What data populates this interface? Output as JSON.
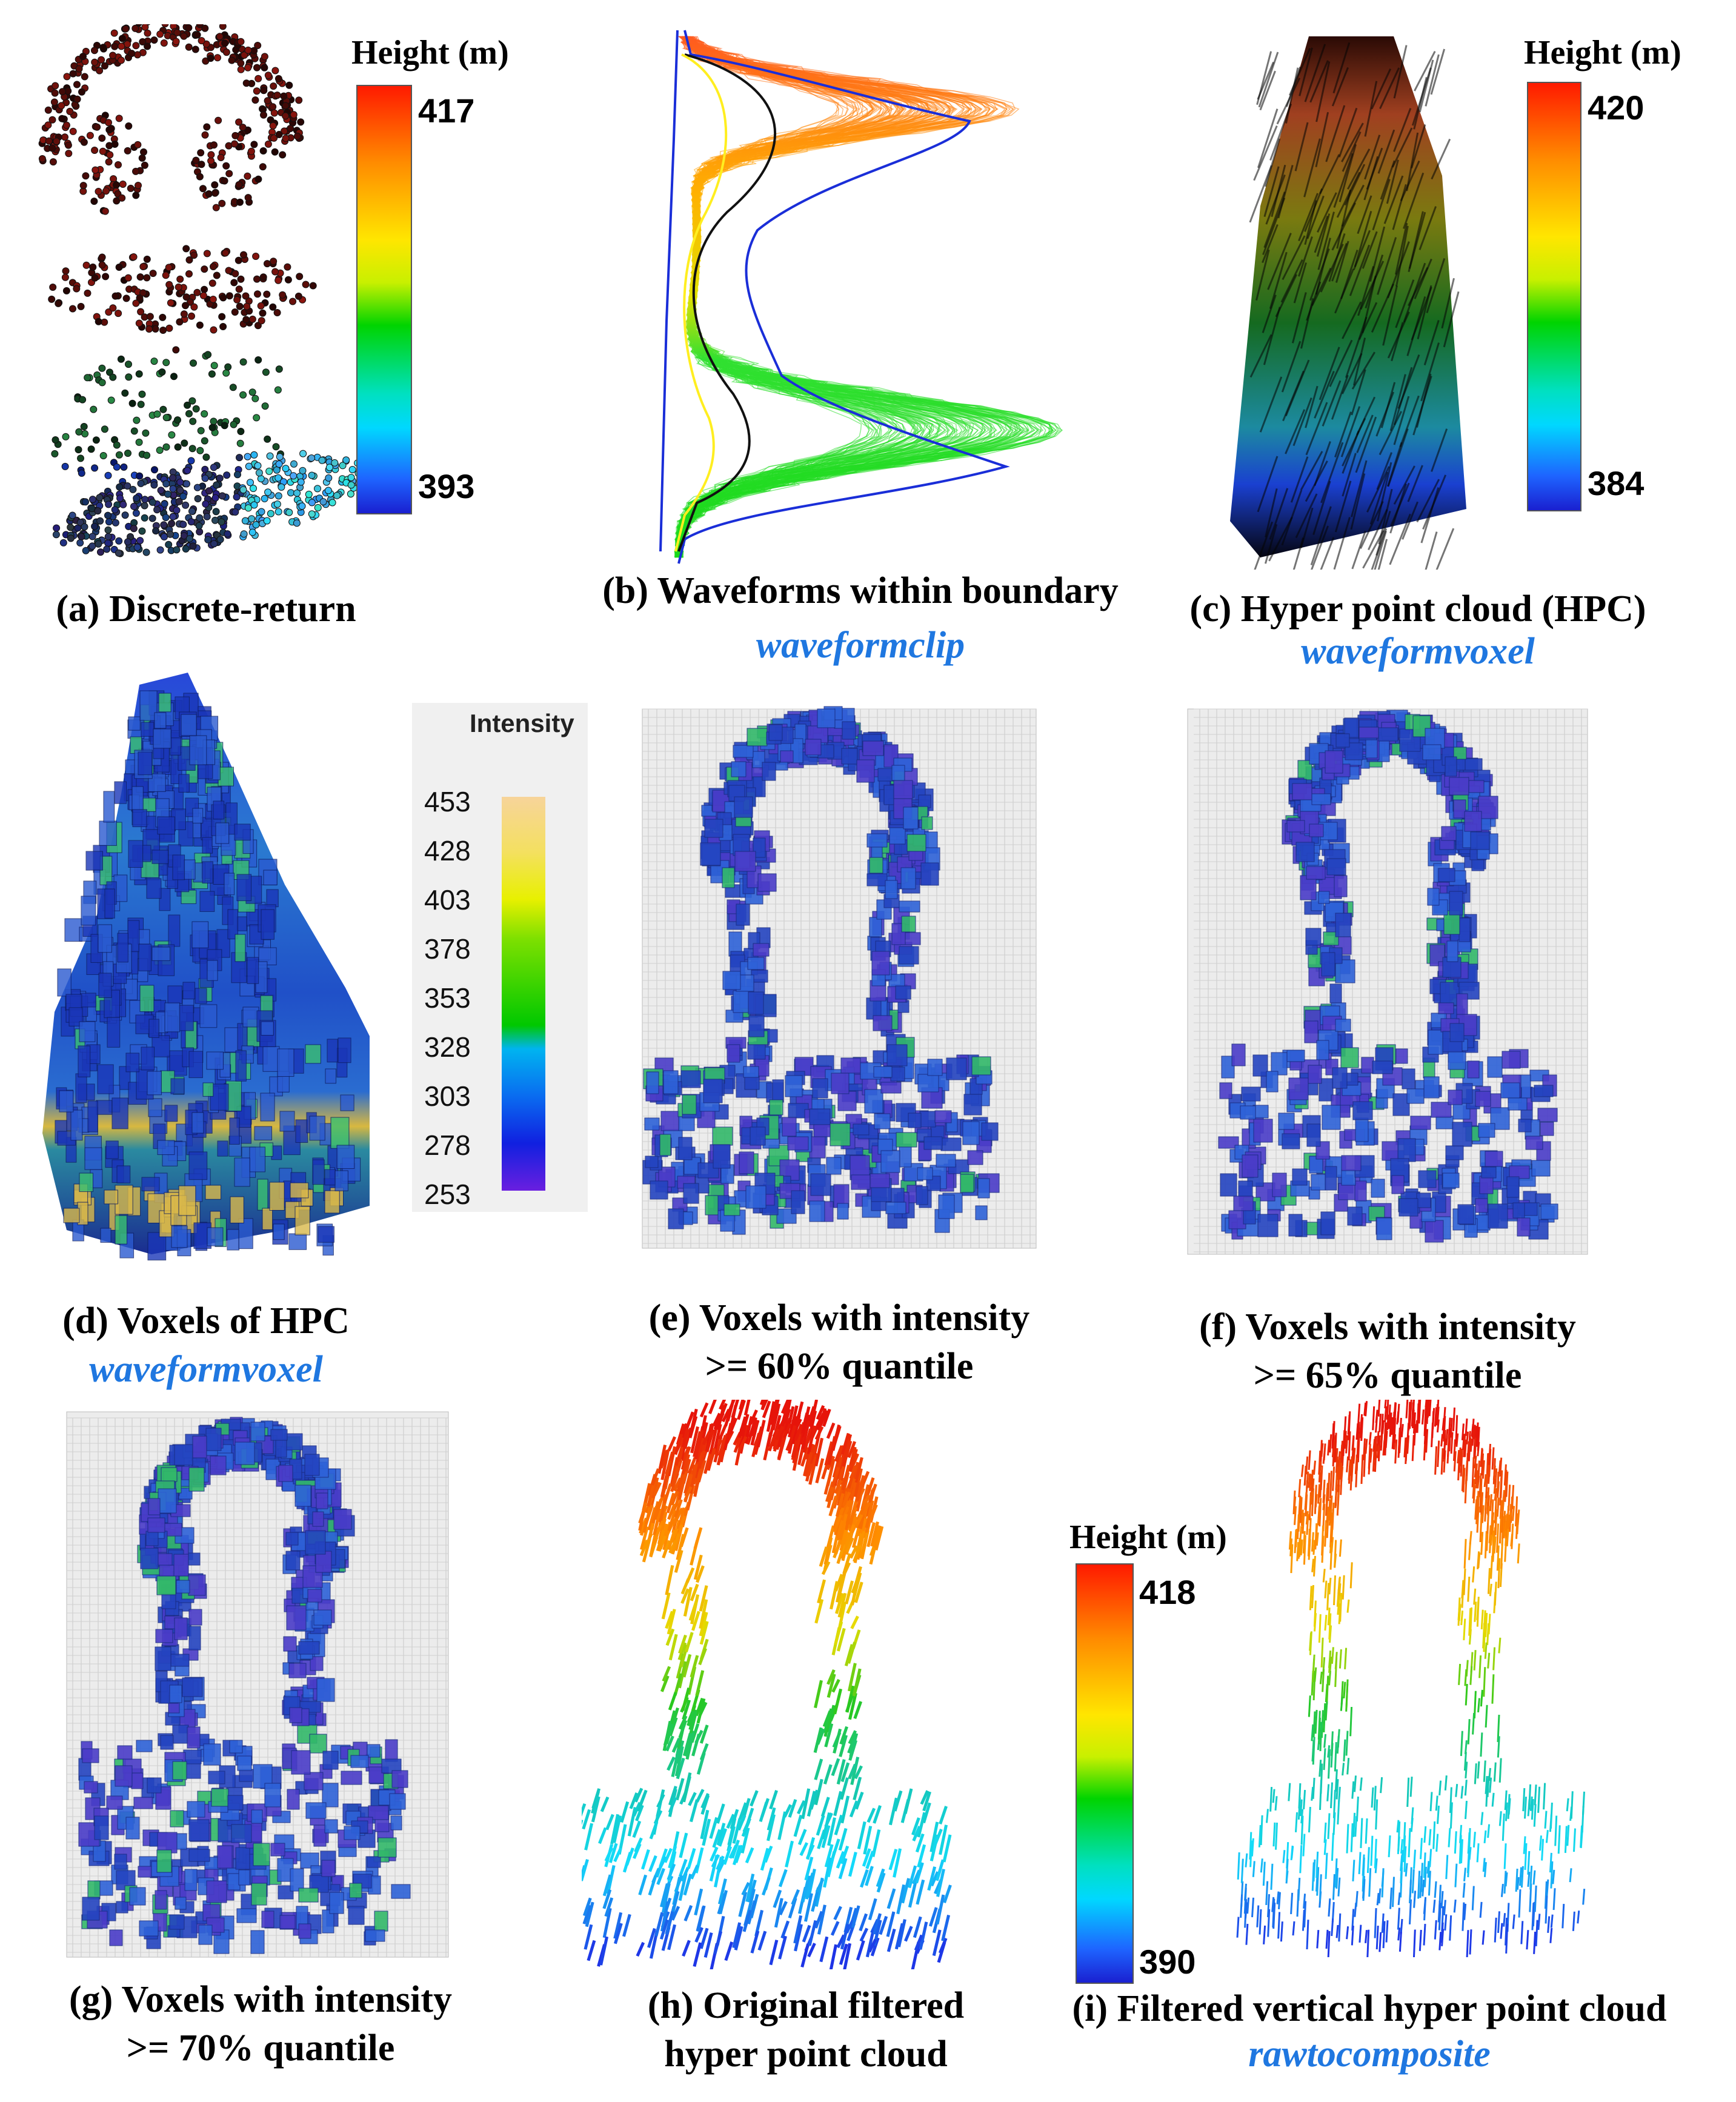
{
  "panels": {
    "a": {
      "caption": "(a) Discrete-return",
      "function": "",
      "icon": "point-cloud-icon"
    },
    "b": {
      "caption": "(b) Waveforms within boundary",
      "function": "waveformclip",
      "icon": "waveform-lines-icon"
    },
    "c": {
      "caption": "(c) Hyper point cloud (HPC)",
      "function": "waveformvoxel",
      "icon": "hyper-point-cloud-icon"
    },
    "d": {
      "caption": "(d) Voxels of HPC",
      "function": "waveformvoxel",
      "icon": "voxel-icon"
    },
    "e": {
      "caption_line1": "(e) Voxels with intensity",
      "caption_line2": ">= 60% quantile",
      "icon": "voxel-icon"
    },
    "f": {
      "caption_line1": "(f) Voxels with intensity",
      "caption_line2": ">= 65% quantile",
      "icon": "voxel-icon"
    },
    "g": {
      "caption_line1": "(g) Voxels with intensity",
      "caption_line2": ">= 70% quantile",
      "icon": "voxel-icon"
    },
    "h": {
      "caption_line1": "(h) Original filtered",
      "caption_line2": "hyper point cloud",
      "icon": "hyper-point-cloud-icon"
    },
    "i": {
      "caption": "(i) Filtered vertical hyper point cloud",
      "function": "rawtocomposite",
      "icon": "hyper-point-cloud-icon"
    }
  },
  "colorbars": {
    "a": {
      "title": "Height (m)",
      "max": "417",
      "min": "393"
    },
    "c": {
      "title": "Height (m)",
      "max": "420",
      "min": "384"
    },
    "i": {
      "title": "Height (m)",
      "max": "418",
      "min": "390"
    }
  },
  "intensity_bar": {
    "title": "Intensity",
    "ticks": [
      "453",
      "428",
      "403",
      "378",
      "353",
      "328",
      "303",
      "278",
      "253"
    ]
  }
}
